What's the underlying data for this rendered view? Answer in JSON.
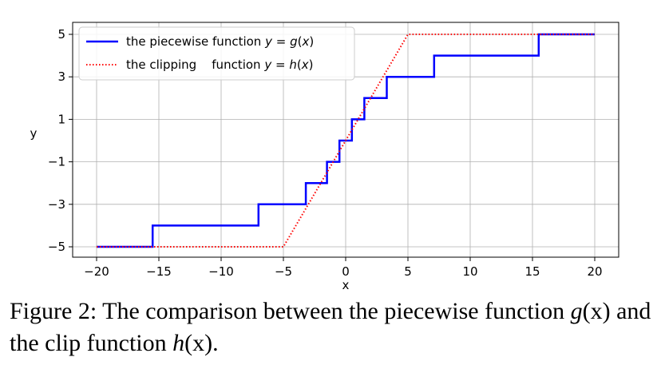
{
  "chart_data": {
    "type": "line",
    "xlabel": "x",
    "ylabel": "y",
    "xlim": [
      -20,
      20
    ],
    "ylim": [
      -5,
      5
    ],
    "grid": true,
    "legend_position": "top-left",
    "xticks": [
      -20,
      -15,
      -10,
      -5,
      0,
      5,
      10,
      15,
      20
    ],
    "yticks": [
      -5,
      -3,
      -1,
      1,
      3,
      5
    ],
    "xtick_labels": [
      "−20",
      "−15",
      "−10",
      "−5",
      "0",
      "5",
      "10",
      "15",
      "20"
    ],
    "ytick_labels": [
      "−5",
      "−3",
      "−1",
      "1",
      "3",
      "5"
    ],
    "series": [
      {
        "name": "the piecewise function y = g(x)",
        "legend_parts": [
          "the piecewise function ",
          "y",
          " = ",
          "g",
          "(",
          "x",
          ")"
        ],
        "style": "solid",
        "color": "#0000ff",
        "points": [
          [
            -20,
            -5
          ],
          [
            -15.5,
            -5
          ],
          [
            -15.5,
            -4
          ],
          [
            -7,
            -4
          ],
          [
            -7,
            -3
          ],
          [
            -3.2,
            -3
          ],
          [
            -3.2,
            -2
          ],
          [
            -1.5,
            -2
          ],
          [
            -1.5,
            -1
          ],
          [
            -0.5,
            -1
          ],
          [
            -0.5,
            0
          ],
          [
            0.5,
            0
          ],
          [
            0.5,
            1
          ],
          [
            1.5,
            1
          ],
          [
            1.5,
            2
          ],
          [
            3.3,
            2
          ],
          [
            3.3,
            3
          ],
          [
            7.1,
            3
          ],
          [
            7.1,
            4
          ],
          [
            15.5,
            4
          ],
          [
            15.5,
            5
          ],
          [
            20,
            5
          ]
        ]
      },
      {
        "name": "the clipping function y = h(x)",
        "legend_parts": [
          "the clipping    function ",
          "y",
          " = ",
          "h",
          "(",
          "x",
          ")"
        ],
        "style": "dotted",
        "color": "#ff0000",
        "points": [
          [
            -20,
            -5
          ],
          [
            -5,
            -5
          ],
          [
            5,
            5
          ],
          [
            20,
            5
          ]
        ]
      }
    ]
  },
  "caption": {
    "prefix": "Figure 2: The comparison between the piecewise function ",
    "g_symbol": "g",
    "g_arg": "(x)",
    "middle": " and the clip function ",
    "h_symbol": "h",
    "h_arg": "(x)",
    "suffix": "."
  }
}
